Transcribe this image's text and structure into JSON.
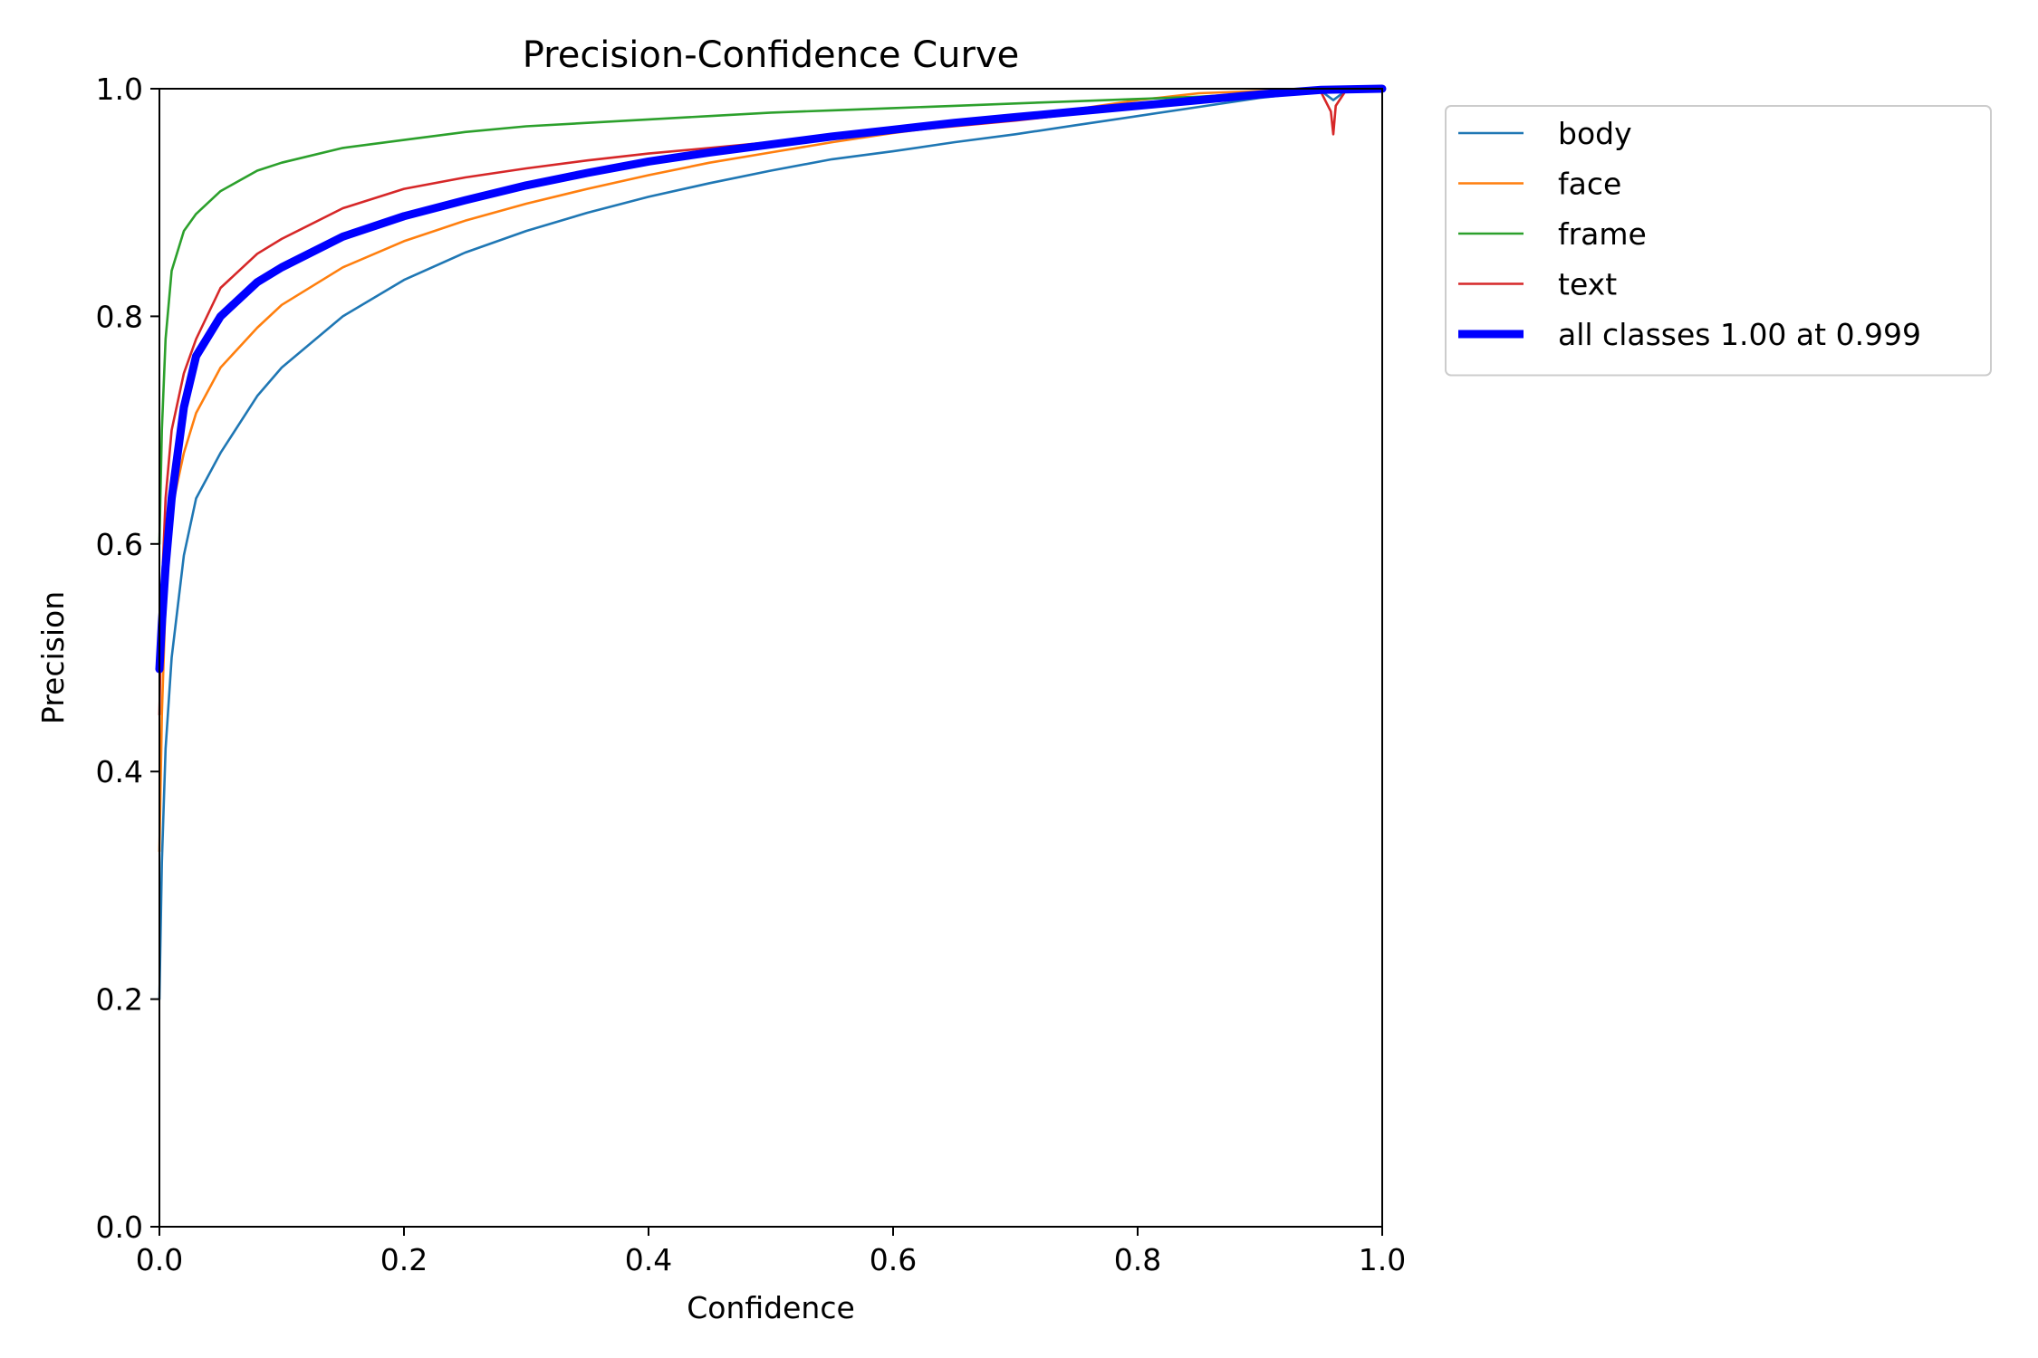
{
  "chart_data": {
    "type": "line",
    "title": "Precision-Confidence Curve",
    "xlabel": "Confidence",
    "ylabel": "Precision",
    "xlim": [
      0,
      1
    ],
    "ylim": [
      0,
      1
    ],
    "xticks": [
      "0.0",
      "0.2",
      "0.4",
      "0.6",
      "0.8",
      "1.0"
    ],
    "yticks": [
      "0.0",
      "0.2",
      "0.4",
      "0.6",
      "0.8",
      "1.0"
    ],
    "grid": false,
    "legend_position": "outside-top-right",
    "series": [
      {
        "name": "body",
        "color": "#1f77b4",
        "x": [
          0.0,
          0.002,
          0.005,
          0.01,
          0.02,
          0.03,
          0.05,
          0.08,
          0.1,
          0.15,
          0.2,
          0.25,
          0.3,
          0.35,
          0.4,
          0.45,
          0.5,
          0.55,
          0.6,
          0.65,
          0.7,
          0.75,
          0.8,
          0.85,
          0.9,
          0.95,
          0.96,
          0.97,
          1.0
        ],
        "y": [
          0.2,
          0.32,
          0.42,
          0.5,
          0.59,
          0.64,
          0.68,
          0.73,
          0.755,
          0.8,
          0.832,
          0.856,
          0.875,
          0.891,
          0.905,
          0.917,
          0.928,
          0.938,
          0.945,
          0.953,
          0.96,
          0.968,
          0.976,
          0.984,
          0.992,
          0.998,
          0.99,
          0.998,
          1.0
        ]
      },
      {
        "name": "face",
        "color": "#ff7f0e",
        "x": [
          0.0,
          0.002,
          0.005,
          0.01,
          0.02,
          0.03,
          0.05,
          0.08,
          0.1,
          0.15,
          0.2,
          0.25,
          0.3,
          0.35,
          0.4,
          0.45,
          0.5,
          0.55,
          0.6,
          0.65,
          0.7,
          0.75,
          0.8,
          0.85,
          0.9,
          0.95,
          1.0
        ],
        "y": [
          0.33,
          0.45,
          0.55,
          0.63,
          0.68,
          0.715,
          0.755,
          0.79,
          0.81,
          0.843,
          0.866,
          0.884,
          0.899,
          0.912,
          0.924,
          0.935,
          0.944,
          0.953,
          0.961,
          0.968,
          0.975,
          0.982,
          0.99,
          0.996,
          0.998,
          0.999,
          1.0
        ]
      },
      {
        "name": "frame",
        "color": "#2ca02c",
        "x": [
          0.0,
          0.002,
          0.005,
          0.01,
          0.02,
          0.03,
          0.05,
          0.08,
          0.1,
          0.15,
          0.2,
          0.25,
          0.3,
          0.35,
          0.4,
          0.45,
          0.5,
          0.55,
          0.6,
          0.65,
          0.7,
          0.75,
          0.8,
          0.85,
          0.9,
          0.95,
          1.0
        ],
        "y": [
          0.6,
          0.7,
          0.78,
          0.84,
          0.875,
          0.89,
          0.91,
          0.928,
          0.935,
          0.948,
          0.955,
          0.962,
          0.967,
          0.97,
          0.973,
          0.976,
          0.979,
          0.981,
          0.983,
          0.985,
          0.987,
          0.989,
          0.991,
          0.993,
          0.996,
          0.998,
          1.0
        ]
      },
      {
        "name": "text",
        "color": "#d62728",
        "x": [
          0.0,
          0.002,
          0.005,
          0.01,
          0.02,
          0.03,
          0.05,
          0.08,
          0.1,
          0.15,
          0.2,
          0.25,
          0.3,
          0.35,
          0.4,
          0.45,
          0.5,
          0.55,
          0.6,
          0.65,
          0.7,
          0.75,
          0.8,
          0.85,
          0.9,
          0.95,
          0.958,
          0.96,
          0.962,
          0.97,
          1.0
        ],
        "y": [
          0.45,
          0.56,
          0.64,
          0.7,
          0.75,
          0.78,
          0.825,
          0.855,
          0.868,
          0.895,
          0.912,
          0.922,
          0.93,
          0.937,
          0.943,
          0.948,
          0.953,
          0.957,
          0.962,
          0.967,
          0.972,
          0.978,
          0.984,
          0.99,
          0.995,
          0.997,
          0.98,
          0.96,
          0.985,
          0.998,
          1.0
        ]
      },
      {
        "name": "all classes 1.00 at 0.999",
        "color": "#0000ff",
        "thick": true,
        "x": [
          0.0,
          0.002,
          0.005,
          0.01,
          0.02,
          0.03,
          0.05,
          0.08,
          0.1,
          0.15,
          0.2,
          0.25,
          0.3,
          0.35,
          0.4,
          0.45,
          0.5,
          0.55,
          0.6,
          0.65,
          0.7,
          0.75,
          0.8,
          0.85,
          0.9,
          0.95,
          1.0
        ],
        "y": [
          0.49,
          0.53,
          0.58,
          0.64,
          0.72,
          0.765,
          0.8,
          0.83,
          0.843,
          0.87,
          0.888,
          0.902,
          0.915,
          0.926,
          0.936,
          0.944,
          0.951,
          0.958,
          0.964,
          0.97,
          0.975,
          0.98,
          0.985,
          0.99,
          0.995,
          0.999,
          1.0
        ]
      }
    ]
  }
}
